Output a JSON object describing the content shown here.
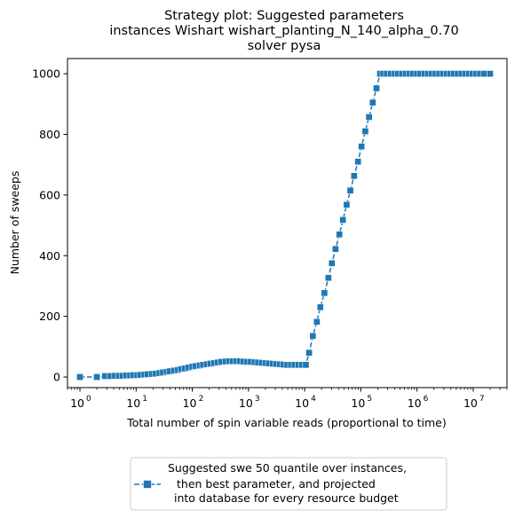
{
  "chart_data": {
    "type": "line",
    "title": [
      "Strategy plot: Suggested parameters",
      "instances Wishart wishart_planting_N_140_alpha_0.70",
      "solver pysa"
    ],
    "xlabel": "Total number of spin variable reads (proportional to time)",
    "ylabel": "Number of sweeps",
    "xscale": "log",
    "xlim": [
      0.6,
      40000000
    ],
    "ylim": [
      -35,
      1050
    ],
    "xticks": [
      {
        "value": 1,
        "label": "10",
        "exp": "0"
      },
      {
        "value": 10,
        "label": "10",
        "exp": "1"
      },
      {
        "value": 100,
        "label": "10",
        "exp": "2"
      },
      {
        "value": 1000,
        "label": "10",
        "exp": "3"
      },
      {
        "value": 10000,
        "label": "10",
        "exp": "4"
      },
      {
        "value": 100000,
        "label": "10",
        "exp": "5"
      },
      {
        "value": 1000000,
        "label": "10",
        "exp": "6"
      },
      {
        "value": 10000000,
        "label": "10",
        "exp": "7"
      }
    ],
    "yticks": [
      0,
      200,
      400,
      600,
      800,
      1000
    ],
    "legend": {
      "location": "below-center",
      "entries": [
        "Suggested swe 50 quantile over instances,",
        "then best parameter, and projected",
        "into database for every resource budget"
      ]
    },
    "series": [
      {
        "name": "Suggested swe 50 quantile over instances, then best parameter, and projected into database for every resource budget",
        "color": "#1f77b4",
        "marker": "square",
        "linestyle": "dashed",
        "points": [
          [
            1,
            0
          ],
          [
            2,
            0
          ],
          [
            2.8,
            3
          ],
          [
            3.5,
            3
          ],
          [
            4.2,
            4
          ],
          [
            5,
            4
          ],
          [
            5.8,
            4
          ],
          [
            6.7,
            5
          ],
          [
            7.8,
            5
          ],
          [
            9,
            6
          ],
          [
            10.5,
            6
          ],
          [
            12,
            7
          ],
          [
            14,
            8
          ],
          [
            16,
            9
          ],
          [
            19,
            10
          ],
          [
            22,
            11
          ],
          [
            26,
            13
          ],
          [
            30,
            15
          ],
          [
            35,
            17
          ],
          [
            40,
            19
          ],
          [
            47,
            21
          ],
          [
            55,
            23
          ],
          [
            63,
            26
          ],
          [
            73,
            28
          ],
          [
            85,
            31
          ],
          [
            100,
            34
          ],
          [
            115,
            36
          ],
          [
            135,
            38
          ],
          [
            155,
            40
          ],
          [
            180,
            42
          ],
          [
            210,
            44
          ],
          [
            245,
            46
          ],
          [
            285,
            48
          ],
          [
            330,
            50
          ],
          [
            390,
            51
          ],
          [
            450,
            52
          ],
          [
            520,
            52
          ],
          [
            600,
            52
          ],
          [
            700,
            52
          ],
          [
            810,
            51
          ],
          [
            950,
            50
          ],
          [
            1100,
            50
          ],
          [
            1280,
            49
          ],
          [
            1480,
            48
          ],
          [
            1720,
            47
          ],
          [
            2000,
            46
          ],
          [
            2300,
            45
          ],
          [
            2700,
            44
          ],
          [
            3100,
            43
          ],
          [
            3600,
            42
          ],
          [
            4200,
            41
          ],
          [
            4900,
            40
          ],
          [
            5700,
            40
          ],
          [
            6600,
            40
          ],
          [
            7700,
            40
          ],
          [
            9000,
            40
          ],
          [
            10500,
            40
          ],
          [
            12000,
            80
          ],
          [
            14000,
            135
          ],
          [
            16500,
            182
          ],
          [
            19000,
            230
          ],
          [
            22500,
            277
          ],
          [
            26500,
            327
          ],
          [
            30500,
            375
          ],
          [
            35500,
            422
          ],
          [
            41500,
            470
          ],
          [
            48000,
            518
          ],
          [
            56000,
            568
          ],
          [
            65000,
            615
          ],
          [
            76000,
            663
          ],
          [
            89000,
            710
          ],
          [
            103000,
            760
          ],
          [
            120000,
            810
          ],
          [
            140000,
            857
          ],
          [
            163000,
            905
          ],
          [
            190000,
            952
          ],
          [
            220000,
            1000
          ],
          [
            250000,
            1000
          ],
          [
            290000,
            1000
          ],
          [
            340000,
            1000
          ],
          [
            400000,
            1000
          ],
          [
            460000,
            1000
          ],
          [
            540000,
            1000
          ],
          [
            630000,
            1000
          ],
          [
            730000,
            1000
          ],
          [
            850000,
            1000
          ],
          [
            1000000,
            1000
          ],
          [
            1150000,
            1000
          ],
          [
            1350000,
            1000
          ],
          [
            1570000,
            1000
          ],
          [
            1830000,
            1000
          ],
          [
            2130000,
            1000
          ],
          [
            2480000,
            1000
          ],
          [
            2890000,
            1000
          ],
          [
            3360000,
            1000
          ],
          [
            3920000,
            1000
          ],
          [
            4560000,
            1000
          ],
          [
            5310000,
            1000
          ],
          [
            6180000,
            1000
          ],
          [
            7200000,
            1000
          ],
          [
            8380000,
            1000
          ],
          [
            9760000,
            1000
          ],
          [
            11360000,
            1000
          ],
          [
            13230000,
            1000
          ],
          [
            15400000,
            1000
          ],
          [
            20000000,
            1000
          ]
        ]
      }
    ]
  }
}
